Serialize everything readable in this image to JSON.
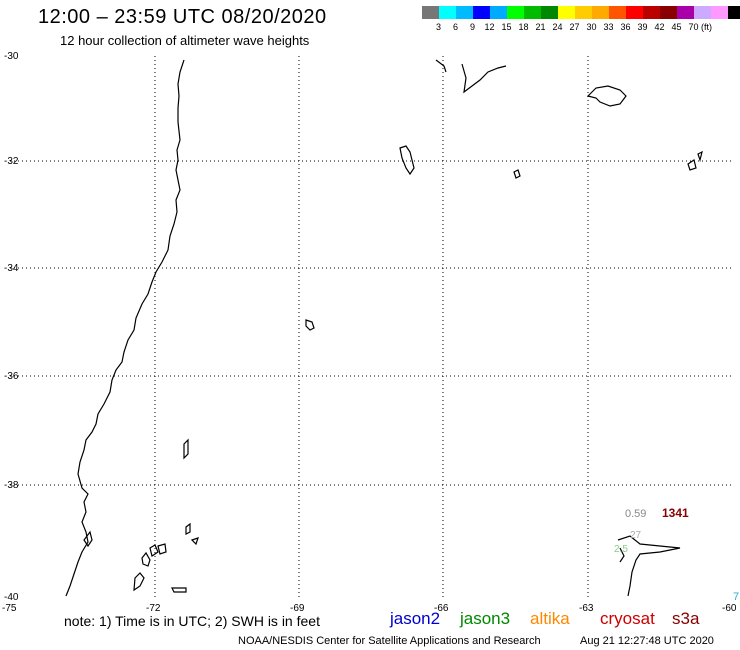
{
  "header": {
    "title": "12:00 – 23:59 UTC 08/20/2020",
    "subtitle": "12 hour collection of altimeter wave heights"
  },
  "colorbar": {
    "colors": [
      "#777777",
      "#00ffff",
      "#00bbff",
      "#0000ff",
      "#00aaff",
      "#00ff00",
      "#00bb00",
      "#008800",
      "#ffff00",
      "#ffcc00",
      "#ffaa00",
      "#ff5500",
      "#ff0000",
      "#bb0000",
      "#880000",
      "#aa00aa",
      "#ccaaff",
      "#ff99ff",
      "#000000"
    ],
    "ticks": [
      "3",
      "6",
      "9",
      "12",
      "15",
      "18",
      "21",
      "24",
      "27",
      "30",
      "33",
      "36",
      "39",
      "42",
      "45",
      "70"
    ],
    "unit": "(ft)"
  },
  "axes": {
    "lat_labels": [
      "-30",
      "-32",
      "-34",
      "-36",
      "-38",
      "-40"
    ],
    "lon_labels": [
      "-75",
      "-72",
      "-69",
      "-66",
      "-63",
      "-60"
    ]
  },
  "observations": {
    "value_grey": "0.59",
    "value_dark": "1341",
    "value_grey_color": "#888888",
    "value_dark_color": "#880000",
    "obs_partial": "27",
    "obs_partial_green": "2.5",
    "edge_value": "7"
  },
  "note": "note: 1) Time is in UTC; 2) SWH is in feet",
  "satellites": [
    {
      "name": "jason2",
      "color": "#0000cc"
    },
    {
      "name": "jason3",
      "color": "#008800"
    },
    {
      "name": "altika",
      "color": "#ff8800"
    },
    {
      "name": "cryosat",
      "color": "#cc0000"
    },
    {
      "name": "s3a",
      "color": "#880000"
    }
  ],
  "footer": {
    "credit": "NOAA/NESDIS Center for Satellite Applications and Research",
    "timestamp": "Aug 21 12:27:48 UTC 2020"
  }
}
